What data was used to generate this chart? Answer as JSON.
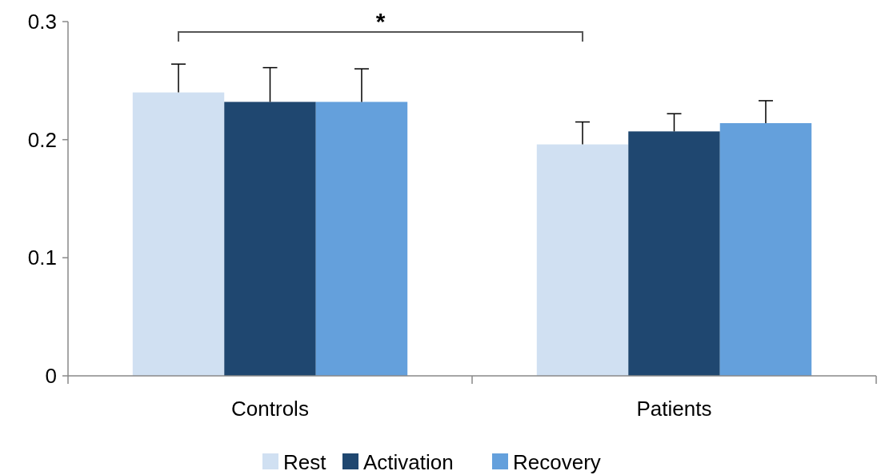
{
  "chart_data": {
    "type": "bar",
    "categories": [
      "Controls",
      "Patients"
    ],
    "series": [
      {
        "name": "Rest",
        "color": "#d0e0f2",
        "values": [
          0.24,
          0.196
        ],
        "errors": [
          [
            0.24,
            0.264
          ],
          [
            0.196,
            0.215
          ]
        ]
      },
      {
        "name": "Activation",
        "color": "#1f4770",
        "values": [
          0.232,
          0.207
        ],
        "errors": [
          [
            0.232,
            0.261
          ],
          [
            0.207,
            0.222
          ]
        ]
      },
      {
        "name": "Recovery",
        "color": "#64a0dc",
        "values": [
          0.232,
          0.214
        ],
        "errors": [
          [
            0.232,
            0.26
          ],
          [
            0.214,
            0.233
          ]
        ]
      }
    ],
    "ylim": [
      0,
      0.3
    ],
    "yticks": [
      0,
      0.1,
      0.2,
      0.3
    ],
    "grid": false,
    "legend": "bottom",
    "annotations": [
      "*"
    ]
  }
}
